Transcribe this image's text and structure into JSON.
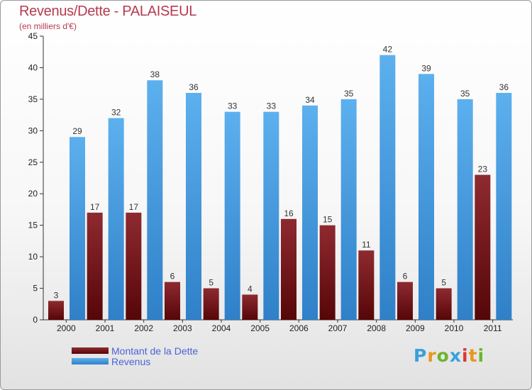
{
  "header": {
    "title": "Revenus/Dette - PALAISEUL",
    "subtitle": "(en milliers d'€)"
  },
  "chart_data": {
    "type": "bar",
    "title": "Revenus/Dette - PALAISEUL",
    "subtitle": "(en milliers d'€)",
    "xlabel": "",
    "ylabel": "",
    "categories": [
      "2000",
      "2001",
      "2002",
      "2003",
      "2004",
      "2005",
      "2006",
      "2007",
      "2008",
      "2009",
      "2010",
      "2011"
    ],
    "series": [
      {
        "name": "Montant de la Dette",
        "color": "#7a1418",
        "values": [
          3,
          17,
          17,
          6,
          5,
          4,
          16,
          15,
          11,
          6,
          5,
          23
        ]
      },
      {
        "name": "Revenus",
        "color": "#4a9fe0",
        "values": [
          29,
          32,
          38,
          36,
          33,
          33,
          34,
          35,
          42,
          39,
          35,
          36
        ]
      }
    ],
    "ylim": [
      0,
      45
    ],
    "yticks": [
      0,
      5,
      10,
      15,
      20,
      25,
      30,
      35,
      40,
      45
    ],
    "grid": false,
    "legend_position": "bottom-left"
  },
  "legend": {
    "items": [
      {
        "label": "Montant de la Dette",
        "color": "#7a1418"
      },
      {
        "label": "Revenus",
        "color": "#4a9fe0"
      }
    ]
  },
  "logo": {
    "text": "Proxiti",
    "letter_colors": [
      "#3aa0dc",
      "#e9961f",
      "#6cb52d",
      "#3aa0dc",
      "#d63a34",
      "#e9961f",
      "#6cb52d"
    ]
  }
}
